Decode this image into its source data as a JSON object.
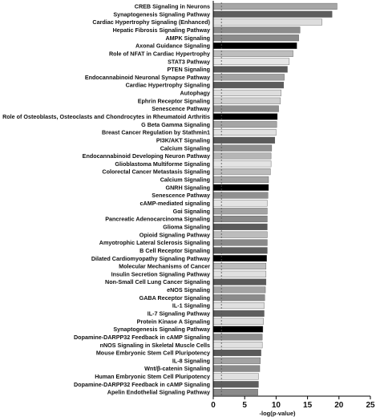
{
  "chart_data": {
    "type": "bar",
    "orientation": "horizontal",
    "xlabel": "-log(p-value)",
    "xlim": [
      0,
      25
    ],
    "xticks": [
      "0",
      "5",
      "10",
      "15",
      "20",
      "25"
    ],
    "threshold": 1.3,
    "categories": [
      "CREB Signaling in Neurons",
      "Synaptogenesis Signaling Pathway",
      "Cardiac Hypertrophy Signaling (Enhanced)",
      "Hepatic Fibrosis Signaling Pathway",
      "AMPK Signaling",
      "Axonal Guidance Signaling",
      "Role of NFAT in Cardiac Hypertrophy",
      "STAT3 Pathway",
      "PTEN Signaling",
      "Endocannabinoid Neuronal Synapse Pathway",
      "Cardiac Hypertrophy Signaling",
      "Autophagy",
      "Ephrin Receptor Signaling",
      "Senescence Pathway",
      "Role of Osteoblasts, Osteoclasts and Chondrocytes in Rheumatoid Arthritis",
      "G Beta Gamma Signaling",
      "Breast Cancer Regulation by Stathmin1",
      "PI3K/AKT Signaling",
      "Calcium Signaling",
      "Endocannabinoid Developing Neuron Pathway",
      "Glioblastoma Multiforme Signaling",
      "Colorectal Cancer Metastasis Signaling",
      "Calcium Signaling",
      "GNRH Signaling",
      "Senescence Pathway",
      "cAMP-mediated signaling",
      "Gαi Signaling",
      "Pancreatic Adenocarcinoma Signaling",
      "Glioma Signaling",
      "Opioid Signaling Pathway",
      "Amyotrophic Lateral Sclerosis Signaling",
      "B Cell Receptor Signaling",
      "Dilated Cardiomyopathy Signaling Pathway",
      "Molecular Mechanisms of Cancer",
      "Insulin Secretion Signaling Pathway",
      "Non-Small Cell Lung Cancer Signaling",
      "eNOS Signaling",
      "GABA Receptor Signaling",
      "IL-1 Signaling",
      "IL-7 Signaling Pathway",
      "Protein Kinase A Signaling",
      "Synaptogenesis Signaling Pathway",
      "Dopamine-DARPP32 Feedback in cAMP Signaling",
      "nNOS Signaling in Skeletal Muscle Cells",
      "Mouse Embryonic Stem Cell Pluripotency",
      "IL-8 Signaling",
      "Wnt/β-catenin Signaling",
      "Human Embryonic Stem Cell Pluripotency",
      "Dopamine-DARPP32 Feedback in cAMP Signaling",
      "Apelin Endothelial Signaling Pathway"
    ],
    "values": [
      19.7,
      18.9,
      17.3,
      13.8,
      13.6,
      13.3,
      12.7,
      12.1,
      11.8,
      11.3,
      11.2,
      10.8,
      10.7,
      10.4,
      10.2,
      10.1,
      10.0,
      9.8,
      9.3,
      9.2,
      9.2,
      9.1,
      8.8,
      8.8,
      8.7,
      8.6,
      8.6,
      8.6,
      8.6,
      8.6,
      8.6,
      8.6,
      8.5,
      8.4,
      8.4,
      8.4,
      8.3,
      8.2,
      8.1,
      8.1,
      8.0,
      7.9,
      7.8,
      7.8,
      7.6,
      7.5,
      7.4,
      7.2,
      7.2,
      7.1
    ],
    "colors": [
      "#a6a6a6",
      "#5e5e5e",
      "#dddddd",
      "#8c8c8c",
      "#8a8a8a",
      "#000000",
      "#bdbdbd",
      "#e6e6e6",
      "#5a5a5a",
      "#a3a3a3",
      "#5c5c5c",
      "#dddddd",
      "#cfcfcf",
      "#8f8f8f",
      "#000000",
      "#a5a5a5",
      "#e0e0e0",
      "#5a5a5a",
      "#8f8f8f",
      "#b5b5b5",
      "#e3e3e3",
      "#bcbcbc",
      "#a5a5a5",
      "#000000",
      "#8f8f8f",
      "#e3e3e3",
      "#a3a3a3",
      "#8a8a8a",
      "#5a5a5a",
      "#bcbcbc",
      "#8a8a8a",
      "#5e5e5e",
      "#000000",
      "#bdbdbd",
      "#e0e0e0",
      "#5a5a5a",
      "#a3a3a3",
      "#8a8a8a",
      "#e0e0e0",
      "#5e5e5e",
      "#dddddd",
      "#000000",
      "#8f8f8f",
      "#e0e0e0",
      "#5a5a5a",
      "#a3a3a3",
      "#8a8a8a",
      "#e0e0e0",
      "#5e5e5e",
      "#8a8a8a"
    ],
    "grid": false,
    "legend": "none"
  }
}
